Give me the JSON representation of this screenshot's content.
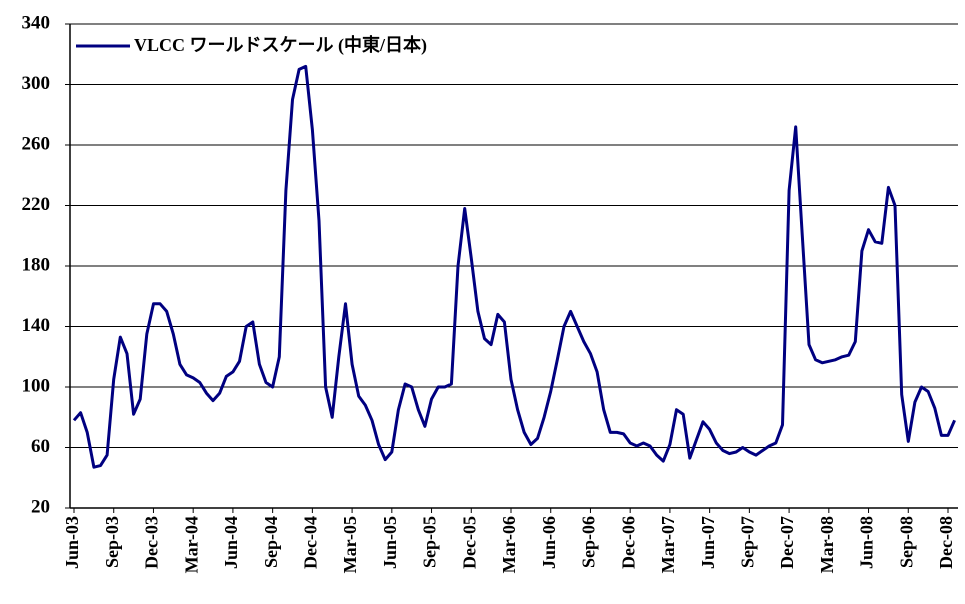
{
  "chart_data": {
    "type": "line",
    "categories": [
      "Jun-03",
      null,
      null,
      null,
      null,
      null,
      "Sep-03",
      null,
      null,
      null,
      null,
      null,
      "Dec-03",
      null,
      null,
      null,
      null,
      null,
      "Mar-04",
      null,
      null,
      null,
      null,
      null,
      "Jun-04",
      null,
      null,
      null,
      null,
      null,
      "Sep-04",
      null,
      null,
      null,
      null,
      null,
      "Dec-04",
      null,
      null,
      null,
      null,
      null,
      "Mar-05",
      null,
      null,
      null,
      null,
      null,
      "Jun-05",
      null,
      null,
      null,
      null,
      null,
      "Sep-05",
      null,
      null,
      null,
      null,
      null,
      "Dec-05",
      null,
      null,
      null,
      null,
      null,
      "Mar-06",
      null,
      null,
      null,
      null,
      null,
      "Jun-06",
      null,
      null,
      null,
      null,
      null,
      "Sep-06",
      null,
      null,
      null,
      null,
      null,
      "Dec-06",
      null,
      null,
      null,
      null,
      null,
      "Mar-07",
      null,
      null,
      null,
      null,
      null,
      "Jun-07",
      null,
      null,
      null,
      null,
      null,
      "Sep-07",
      null,
      null,
      null,
      null,
      null,
      "Dec-07",
      null,
      null,
      null,
      null,
      null,
      "Mar-08",
      null,
      null,
      null,
      null,
      null,
      "Jun-08",
      null,
      null,
      null,
      null,
      null,
      "Sep-08",
      null,
      null,
      null,
      null,
      null,
      "Dec-08",
      null
    ],
    "series": [
      {
        "name": "VLCC ワールドスケール (中東/日本)",
        "color": "#000080",
        "values": [
          78,
          83,
          70,
          47,
          48,
          55,
          105,
          133,
          122,
          82,
          92,
          135,
          155,
          155,
          150,
          135,
          115,
          108,
          106,
          103,
          96,
          91,
          96,
          107,
          110,
          117,
          140,
          143,
          115,
          103,
          100,
          120,
          230,
          290,
          310,
          312,
          270,
          210,
          100,
          80,
          120,
          155,
          115,
          94,
          88,
          78,
          62,
          52,
          57,
          85,
          102,
          100,
          85,
          74,
          92,
          100,
          100,
          102,
          180,
          218,
          185,
          150,
          132,
          128,
          148,
          143,
          105,
          85,
          70,
          62,
          66,
          80,
          97,
          118,
          140,
          150,
          140,
          130,
          122,
          110,
          85,
          70,
          70,
          69,
          63,
          61,
          63,
          61,
          55,
          51,
          62,
          85,
          82,
          53,
          65,
          77,
          72,
          63,
          58,
          56,
          57,
          60,
          57,
          55,
          58,
          61,
          63,
          75,
          230,
          272,
          200,
          128,
          118,
          116,
          117,
          118,
          120,
          121,
          130,
          190,
          204,
          196,
          195,
          232,
          220,
          95,
          64,
          90,
          100,
          97,
          86,
          68,
          68,
          78
        ]
      }
    ],
    "ylim": [
      20,
      340
    ],
    "yticks": [
      20,
      60,
      100,
      140,
      180,
      220,
      260,
      300,
      340
    ],
    "grid": true
  }
}
